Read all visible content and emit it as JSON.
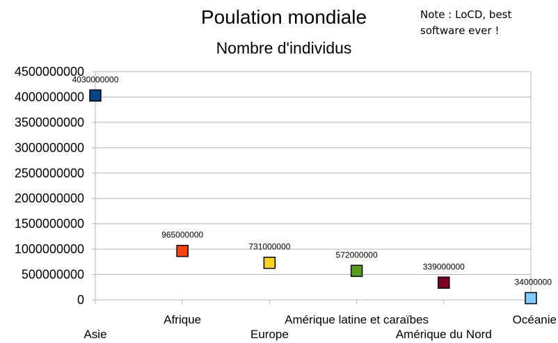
{
  "note": "Note : LoCD, best software ever !",
  "chart_data": {
    "type": "scatter",
    "title": "Poulation mondiale",
    "subtitle": "Nombre d'individus",
    "categories": [
      "Asie",
      "Afrique",
      "Europe",
      "Amérique latine et caraïbes",
      "Amérique du Nord",
      "Océanie"
    ],
    "values": [
      4030000000,
      965000000,
      731000000,
      572000000,
      339000000,
      34000000
    ],
    "data_labels": [
      "4030000000",
      "965000000",
      "731000000",
      "572000000",
      "339000000",
      "34000000"
    ],
    "colors": [
      "#004586",
      "#ff420e",
      "#ffd320",
      "#579d1c",
      "#7e0021",
      "#83caff"
    ],
    "ylim": [
      0,
      4500000000
    ],
    "yticks": [
      0,
      500000000,
      1000000000,
      1500000000,
      2000000000,
      2500000000,
      3000000000,
      3500000000,
      4000000000,
      4500000000
    ],
    "grid": true,
    "legend": "none"
  }
}
